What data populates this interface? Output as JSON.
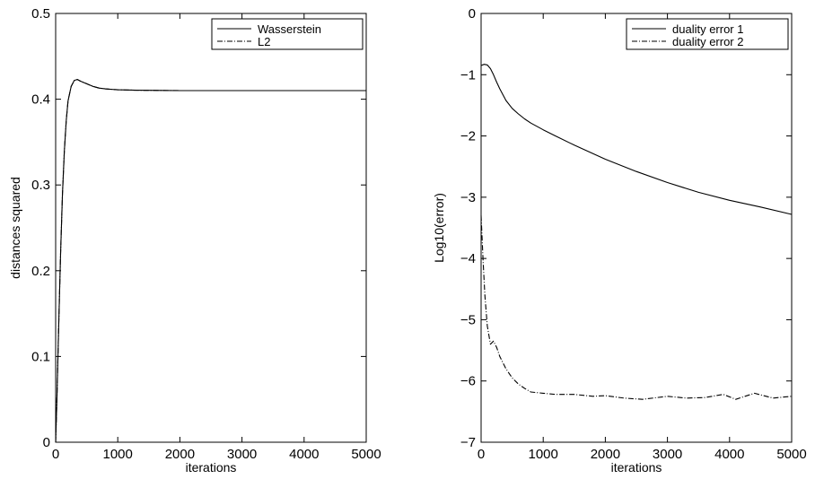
{
  "chart_data": [
    {
      "type": "line",
      "xlabel": "iterations",
      "ylabel": "distances squared",
      "xlim": [
        0,
        5000
      ],
      "ylim": [
        0,
        0.5
      ],
      "xticks": [
        "0",
        "1000",
        "2000",
        "3000",
        "4000",
        "5000"
      ],
      "yticks": [
        "0",
        "0.1",
        "0.2",
        "0.3",
        "0.4",
        "0.5"
      ],
      "legend_position": "top-right",
      "grid": false,
      "series": [
        {
          "name": "Wasserstein",
          "style": "solid",
          "x": [
            0,
            20,
            50,
            80,
            110,
            140,
            170,
            200,
            250,
            300,
            350,
            400,
            500,
            600,
            700,
            800,
            1000,
            1300,
            1700,
            2000,
            2500,
            3000,
            4000,
            5000
          ],
          "values": [
            0.0,
            0.05,
            0.14,
            0.22,
            0.29,
            0.34,
            0.375,
            0.398,
            0.415,
            0.422,
            0.423,
            0.421,
            0.418,
            0.415,
            0.413,
            0.412,
            0.411,
            0.4105,
            0.4102,
            0.41,
            0.41,
            0.41,
            0.41,
            0.41
          ]
        },
        {
          "name": "L2",
          "style": "dashdot",
          "x": [
            0,
            20,
            50,
            80,
            110,
            140,
            170,
            200,
            250,
            300,
            350,
            400,
            500,
            600,
            700,
            800,
            1000,
            1300,
            1700,
            2000,
            2500,
            3000,
            4000,
            5000
          ],
          "values": [
            0.0,
            0.05,
            0.14,
            0.22,
            0.29,
            0.34,
            0.375,
            0.398,
            0.415,
            0.422,
            0.423,
            0.421,
            0.418,
            0.415,
            0.413,
            0.412,
            0.411,
            0.4105,
            0.4102,
            0.41,
            0.41,
            0.41,
            0.41,
            0.41
          ]
        }
      ]
    },
    {
      "type": "line",
      "xlabel": "iterations",
      "ylabel": "Log10(error)",
      "xlim": [
        0,
        5000
      ],
      "ylim": [
        -7,
        0
      ],
      "xticks": [
        "0",
        "1000",
        "2000",
        "3000",
        "4000",
        "5000"
      ],
      "yticks": [
        "0",
        "−1",
        "−2",
        "−3",
        "−4",
        "−5",
        "−6",
        "−7"
      ],
      "legend_position": "top-right",
      "grid": false,
      "series": [
        {
          "name": "duality error 1",
          "style": "solid",
          "x": [
            0,
            50,
            100,
            150,
            200,
            250,
            300,
            400,
            500,
            600,
            700,
            800,
            1000,
            1200,
            1500,
            2000,
            2500,
            3000,
            3500,
            4000,
            4500,
            5000
          ],
          "values": [
            -0.85,
            -0.83,
            -0.84,
            -0.9,
            -1.0,
            -1.12,
            -1.23,
            -1.42,
            -1.55,
            -1.64,
            -1.72,
            -1.79,
            -1.9,
            -2.0,
            -2.15,
            -2.38,
            -2.58,
            -2.76,
            -2.92,
            -3.05,
            -3.16,
            -3.28
          ]
        },
        {
          "name": "duality error 2",
          "style": "dashdot",
          "x": [
            0,
            30,
            60,
            100,
            150,
            200,
            250,
            300,
            400,
            500,
            600,
            700,
            800,
            1000,
            1200,
            1500,
            1800,
            2000,
            2300,
            2600,
            3000,
            3300,
            3600,
            3900,
            4100,
            4400,
            4700,
            5000
          ],
          "values": [
            -3.3,
            -4.0,
            -4.6,
            -5.1,
            -5.4,
            -5.35,
            -5.45,
            -5.6,
            -5.8,
            -5.95,
            -6.05,
            -6.12,
            -6.18,
            -6.2,
            -6.22,
            -6.22,
            -6.25,
            -6.24,
            -6.28,
            -6.3,
            -6.25,
            -6.28,
            -6.27,
            -6.22,
            -6.3,
            -6.2,
            -6.28,
            -6.25
          ]
        }
      ]
    }
  ]
}
